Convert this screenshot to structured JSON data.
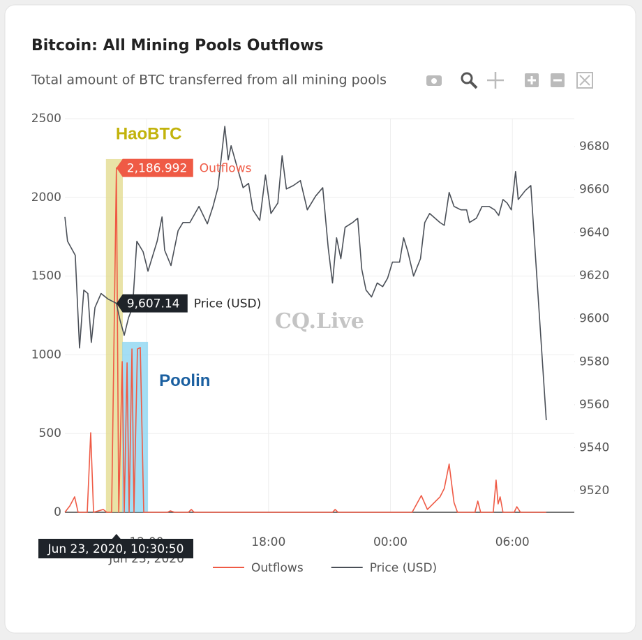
{
  "chart_data": {
    "type": "line",
    "title": "Bitcoin: All Mining Pools Outflows",
    "subtitle": "Total amount of BTC transferred from all mining pools",
    "xlim": [
      7.98,
      33.05
    ],
    "xticks": [
      {
        "value": 12,
        "label": "12:00"
      },
      {
        "value": 18,
        "label": "18:00"
      },
      {
        "value": 24,
        "label": "00:00"
      },
      {
        "value": 30,
        "label": "06:00"
      }
    ],
    "x_date_label": "Jun 23, 2020",
    "ylim": [
      0,
      2500
    ],
    "yticks": [
      0,
      500,
      1000,
      1500,
      2000,
      2500
    ],
    "y2lim": [
      9510,
      9693
    ],
    "y2ticks": [
      9520,
      9540,
      9560,
      9580,
      9600,
      9620,
      9640,
      9660,
      9680
    ],
    "grid": true,
    "legend": "bottom",
    "series": [
      {
        "name": "Outflows",
        "color": "#ef5a45",
        "x": [
          7.98,
          8.22,
          8.46,
          8.63,
          9.08,
          9.25,
          9.39,
          9.87,
          10.04,
          10.28,
          10.514,
          10.63,
          10.8,
          10.9,
          11.04,
          11.14,
          11.28,
          11.38,
          11.55,
          11.69,
          11.86,
          13.03,
          13.17,
          13.38,
          14.06,
          14.2,
          14.34,
          21.15,
          21.28,
          21.42,
          25.07,
          25.52,
          25.82,
          26.44,
          26.65,
          26.89,
          27.13,
          27.3,
          28.16,
          28.3,
          28.44,
          29.06,
          29.2,
          29.3,
          29.4,
          29.54,
          30.09,
          30.22,
          30.4,
          31.67
        ],
        "values": [
          0,
          40,
          98,
          0,
          0,
          505,
          0,
          18,
          0,
          0,
          2186.992,
          0,
          957,
          0,
          949,
          0,
          1037,
          0,
          1037,
          1046,
          0,
          0,
          9,
          0,
          0,
          18,
          0,
          0,
          18,
          0,
          0,
          106,
          18,
          98,
          151,
          306,
          62,
          0,
          0,
          71,
          0,
          0,
          204,
          53,
          98,
          0,
          0,
          35,
          0,
          0
        ]
      },
      {
        "name": "Price (USD)",
        "color": "#4a4f57",
        "axis": "y2",
        "x": [
          7.98,
          8.11,
          8.49,
          8.7,
          8.91,
          9.11,
          9.28,
          9.46,
          9.76,
          10.11,
          10.514,
          10.69,
          10.9,
          11.11,
          11.31,
          11.52,
          11.83,
          12.07,
          12.52,
          12.76,
          12.89,
          13.2,
          13.55,
          13.79,
          14.13,
          14.58,
          14.99,
          15.27,
          15.51,
          15.85,
          16.02,
          16.16,
          16.47,
          16.75,
          17.02,
          17.23,
          17.57,
          17.85,
          18.12,
          18.46,
          18.67,
          18.88,
          19.22,
          19.57,
          19.91,
          20.32,
          20.67,
          20.94,
          21.15,
          21.35,
          21.56,
          21.77,
          22.14,
          22.39,
          22.59,
          22.8,
          23.07,
          23.35,
          23.62,
          23.86,
          24.1,
          24.45,
          24.65,
          24.86,
          25.14,
          25.48,
          25.69,
          25.93,
          26.44,
          26.65,
          26.89,
          27.13,
          27.47,
          27.75,
          27.89,
          28.23,
          28.51,
          28.85,
          29.13,
          29.33,
          29.54,
          29.74,
          29.95,
          30.16,
          30.29,
          30.64,
          30.91,
          31.67
        ],
        "values": [
          9647.3,
          9636.0,
          9629.5,
          9586.4,
          9613.3,
          9611.7,
          9589.0,
          9605.2,
          9611.7,
          9609.1,
          9607.14,
          9599.4,
          9592.3,
          9600.4,
          9605.2,
          9636.0,
          9631.1,
          9622.1,
          9636.0,
          9647.3,
          9631.8,
          9624.7,
          9640.9,
          9644.7,
          9644.7,
          9652.2,
          9644.1,
          9652.2,
          9660.9,
          9689.4,
          9673.9,
          9680.4,
          9670.0,
          9660.9,
          9662.9,
          9650.6,
          9645.7,
          9666.8,
          9648.9,
          9653.8,
          9675.8,
          9660.3,
          9661.9,
          9664.2,
          9650.6,
          9657.0,
          9660.9,
          9632.8,
          9616.6,
          9637.6,
          9627.9,
          9642.5,
          9644.7,
          9646.7,
          9623.0,
          9613.3,
          9610.1,
          9616.6,
          9614.9,
          9618.8,
          9626.3,
          9626.3,
          9637.6,
          9631.1,
          9619.8,
          9627.9,
          9644.7,
          9648.9,
          9644.7,
          9643.4,
          9658.7,
          9652.2,
          9650.6,
          9650.6,
          9644.7,
          9646.7,
          9652.2,
          9652.2,
          9650.6,
          9648.0,
          9655.4,
          9653.8,
          9650.6,
          9668.4,
          9655.4,
          9659.6,
          9661.9,
          9552.8
        ]
      }
    ],
    "hover": {
      "x": 10.514,
      "x_label": "Jun 23, 2020, 10:30:50",
      "labels": [
        "2,186.992",
        "9,607.14"
      ]
    },
    "annotations": [
      {
        "text": "HaoBTC",
        "color": "#c2b30c",
        "fill": "#e2d98a",
        "x0": 10.0,
        "x1": 10.83,
        "y1": 2243
      },
      {
        "text": "Poolin",
        "color": "#1a5fa0",
        "fill": "#86d3f0",
        "x0": 10.8,
        "x1": 12.07,
        "y1": 1082
      }
    ],
    "watermark": "CQ.Live"
  }
}
